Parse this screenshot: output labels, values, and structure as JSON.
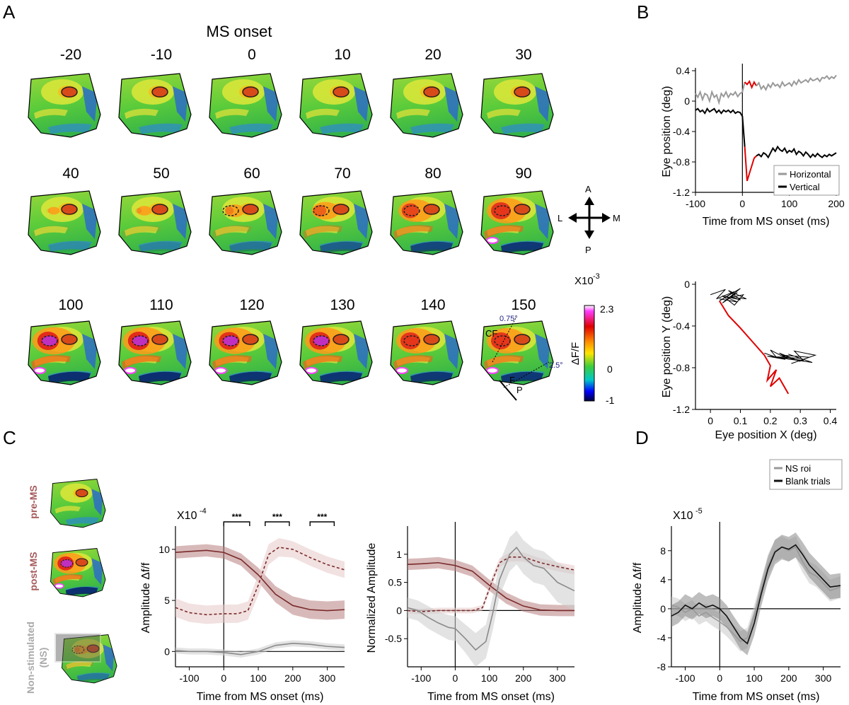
{
  "panelA": {
    "label": "A",
    "title": "MS onset",
    "frame_times": [
      "-20",
      "-10",
      "0",
      "10",
      "20",
      "30",
      "40",
      "50",
      "60",
      "70",
      "80",
      "90",
      "100",
      "110",
      "120",
      "130",
      "140",
      "150"
    ],
    "compass": {
      "a": "A",
      "p": "P",
      "l": "L",
      "m": "M"
    },
    "colorbar": {
      "exponent_prefix": "X10",
      "exponent": "-3",
      "label": "ΔF/F",
      "ticks": [
        "2.3",
        "0",
        "-1"
      ]
    },
    "annotations": {
      "cf": "CF",
      "f": "F",
      "p": "P",
      "deg1": "0.75°",
      "deg2": "2.5°"
    }
  },
  "panelB": {
    "label": "B"
  },
  "panelC": {
    "label": "C",
    "row_labels": [
      "pre-MS",
      "post-MS",
      "Non-stimulated",
      "(NS)"
    ],
    "sig_marks": [
      "***",
      "***",
      "***"
    ]
  },
  "panelD": {
    "label": "D"
  },
  "colors": {
    "pre_ms": "#7a2a2a",
    "post_ms": "#8b3a3a",
    "ns": "#999999",
    "saccade_red": "#e00000",
    "horizontal": "#999999",
    "vertical": "#000000"
  },
  "chart_data": [
    {
      "id": "B_top",
      "type": "line",
      "xlabel": "Time from MS onset (ms)",
      "ylabel": "Eye position (deg)",
      "xlim": [
        -100,
        200
      ],
      "ylim": [
        -1.2,
        0.4
      ],
      "xticks": [
        "-100",
        "0",
        "100",
        "200"
      ],
      "yticks": [
        "0.4",
        "0",
        "-0.4",
        "-0.8",
        "-1.2"
      ],
      "legend": [
        "Horizontal",
        "Vertical"
      ],
      "series": [
        {
          "name": "Horizontal",
          "x": [
            -100,
            -95,
            -90,
            -85,
            -80,
            -75,
            -70,
            -65,
            -60,
            -55,
            -50,
            -45,
            -40,
            -35,
            -30,
            -25,
            -20,
            -15,
            -10,
            -5,
            0,
            5,
            10,
            15,
            20,
            25,
            30,
            35,
            40,
            45,
            50,
            55,
            60,
            65,
            70,
            75,
            80,
            85,
            90,
            95,
            100,
            105,
            110,
            115,
            120,
            125,
            130,
            135,
            140,
            145,
            150,
            155,
            160,
            165,
            170,
            175,
            180,
            185,
            190,
            195,
            200
          ],
          "y": [
            0.1,
            0.05,
            0.12,
            0.02,
            0.1,
            0.08,
            0.0,
            0.12,
            0.05,
            0.08,
            -0.02,
            0.1,
            0.06,
            0.12,
            0.05,
            0.1,
            0.08,
            0.12,
            0.06,
            0.1,
            0.12,
            0.25,
            0.22,
            0.26,
            0.18,
            0.25,
            0.2,
            0.24,
            0.16,
            0.2,
            0.15,
            0.22,
            0.18,
            0.24,
            0.2,
            0.22,
            0.18,
            0.25,
            0.2,
            0.22,
            0.24,
            0.2,
            0.26,
            0.22,
            0.28,
            0.24,
            0.26,
            0.28,
            0.25,
            0.3,
            0.27,
            0.28,
            0.3,
            0.26,
            0.31,
            0.3,
            0.33,
            0.29,
            0.32,
            0.3,
            0.34
          ]
        },
        {
          "name": "Vertical",
          "x": [
            -100,
            -95,
            -90,
            -85,
            -80,
            -75,
            -70,
            -65,
            -60,
            -55,
            -50,
            -45,
            -40,
            -35,
            -30,
            -25,
            -20,
            -15,
            -10,
            -5,
            0,
            5,
            10,
            15,
            20,
            25,
            30,
            35,
            40,
            45,
            50,
            55,
            60,
            65,
            70,
            75,
            80,
            85,
            90,
            95,
            100,
            105,
            110,
            115,
            120,
            125,
            130,
            135,
            140,
            145,
            150,
            155,
            160,
            165,
            170,
            175,
            180,
            185,
            190,
            195,
            200
          ],
          "y": [
            -0.12,
            -0.1,
            -0.14,
            -0.12,
            -0.16,
            -0.1,
            -0.14,
            -0.12,
            -0.1,
            -0.15,
            -0.12,
            -0.16,
            -0.12,
            -0.14,
            -0.12,
            -0.15,
            -0.12,
            -0.16,
            -0.14,
            -0.15,
            -0.2,
            -0.6,
            -1.05,
            -0.95,
            -0.85,
            -0.75,
            -0.72,
            -0.7,
            -0.73,
            -0.68,
            -0.7,
            -0.74,
            -0.68,
            -0.62,
            -0.66,
            -0.6,
            -0.64,
            -0.66,
            -0.62,
            -0.68,
            -0.65,
            -0.67,
            -0.63,
            -0.7,
            -0.66,
            -0.68,
            -0.72,
            -0.67,
            -0.7,
            -0.74,
            -0.7,
            -0.73,
            -0.69,
            -0.72,
            -0.74,
            -0.71,
            -0.73,
            -0.7,
            -0.72,
            -0.7,
            -0.68
          ]
        }
      ]
    },
    {
      "id": "B_bottom",
      "type": "line",
      "xlabel": "Eye position X (deg)",
      "ylabel": "Eye position Y (deg)",
      "xlim": [
        -0.05,
        0.42
      ],
      "ylim": [
        -1.2,
        0
      ],
      "xticks": [
        "0",
        "0.1",
        "0.2",
        "0.3",
        "0.4"
      ],
      "yticks": [
        "0",
        "-0.4",
        "-0.8",
        "-1.2"
      ],
      "series": [
        {
          "name": "pre",
          "x": [
            0.0,
            0.05,
            0.02,
            0.08,
            0.03,
            0.1,
            0.04,
            0.09,
            0.06,
            0.11,
            0.08,
            0.04,
            0.1,
            0.06,
            0.12,
            0.05,
            0.09,
            0.03
          ],
          "y": [
            -0.1,
            -0.05,
            -0.14,
            -0.07,
            -0.16,
            -0.04,
            -0.18,
            -0.08,
            -0.13,
            -0.1,
            -0.2,
            -0.11,
            -0.15,
            -0.06,
            -0.14,
            -0.12,
            -0.17,
            -0.14
          ]
        },
        {
          "name": "saccade",
          "x": [
            0.03,
            0.06,
            0.1,
            0.14,
            0.18,
            0.2,
            0.19,
            0.22,
            0.2,
            0.23,
            0.25,
            0.26
          ],
          "y": [
            -0.16,
            -0.3,
            -0.42,
            -0.55,
            -0.68,
            -0.78,
            -0.92,
            -0.82,
            -0.98,
            -0.9,
            -1.0,
            -1.05
          ]
        },
        {
          "name": "post",
          "x": [
            0.18,
            0.22,
            0.2,
            0.26,
            0.23,
            0.3,
            0.24,
            0.33,
            0.27,
            0.35,
            0.28,
            0.31,
            0.22,
            0.34,
            0.26,
            0.3,
            0.19,
            0.25
          ],
          "y": [
            -0.66,
            -0.7,
            -0.63,
            -0.72,
            -0.66,
            -0.74,
            -0.68,
            -0.7,
            -0.76,
            -0.68,
            -0.64,
            -0.73,
            -0.7,
            -0.75,
            -0.67,
            -0.71,
            -0.69,
            -0.72
          ]
        }
      ]
    },
    {
      "id": "C_left",
      "type": "line",
      "xlabel": "Time from MS onset (ms)",
      "ylabel": "Amplitude Δf/f",
      "exponent_prefix": "X10",
      "exponent": "-4",
      "xlim": [
        -140,
        350
      ],
      "ylim": [
        -1.5,
        12
      ],
      "xticks": [
        "-100",
        "0",
        "100",
        "200",
        "300"
      ],
      "yticks": [
        "0",
        "5",
        "10"
      ],
      "sig_ranges": [
        [
          0,
          75
        ],
        [
          120,
          190
        ],
        [
          250,
          320
        ]
      ],
      "series": [
        {
          "name": "pre-MS",
          "style": "solid",
          "x": [
            -140,
            -100,
            -50,
            0,
            50,
            100,
            150,
            200,
            250,
            300,
            350
          ],
          "y": [
            9.7,
            9.8,
            9.9,
            9.7,
            9.0,
            7.5,
            5.6,
            4.5,
            4.1,
            4.0,
            4.1
          ],
          "band": [
            0.6,
            0.6,
            0.6,
            0.6,
            0.6,
            0.7,
            0.8,
            0.9,
            0.9,
            0.9,
            0.9
          ]
        },
        {
          "name": "post-MS",
          "style": "dashed",
          "x": [
            -140,
            -100,
            -50,
            0,
            40,
            70,
            100,
            130,
            160,
            200,
            250,
            300,
            350
          ],
          "y": [
            4.3,
            3.8,
            3.6,
            3.7,
            3.7,
            4.0,
            6.5,
            9.5,
            10.2,
            10.0,
            9.2,
            8.5,
            8.0
          ],
          "band": [
            0.9,
            0.9,
            0.9,
            0.9,
            0.9,
            0.9,
            1.0,
            1.0,
            0.9,
            0.8,
            0.8,
            0.8,
            0.8
          ]
        },
        {
          "name": "NS",
          "style": "solid",
          "x": [
            -140,
            -100,
            -50,
            0,
            50,
            100,
            150,
            200,
            250,
            300,
            350
          ],
          "y": [
            0.1,
            0.0,
            0.0,
            -0.1,
            -0.3,
            0.0,
            0.6,
            0.8,
            0.7,
            0.5,
            0.4
          ],
          "band": [
            0.3,
            0.3,
            0.3,
            0.3,
            0.3,
            0.3,
            0.3,
            0.3,
            0.3,
            0.3,
            0.3
          ]
        }
      ]
    },
    {
      "id": "C_right",
      "type": "line",
      "xlabel": "Time from MS onset (ms)",
      "ylabel": "Normalized Amplitude",
      "xlim": [
        -140,
        350
      ],
      "ylim": [
        -1.0,
        1.45
      ],
      "xticks": [
        "-100",
        "0",
        "100",
        "200",
        "300"
      ],
      "yticks": [
        "1",
        "0.5",
        "0",
        "-0.5"
      ],
      "series": [
        {
          "name": "pre-MS",
          "style": "solid",
          "x": [
            -140,
            -100,
            -50,
            0,
            50,
            100,
            150,
            200,
            250,
            300,
            350
          ],
          "y": [
            0.82,
            0.83,
            0.85,
            0.8,
            0.7,
            0.45,
            0.22,
            0.08,
            0.01,
            0.0,
            0.0
          ],
          "band": [
            0.1,
            0.1,
            0.1,
            0.1,
            0.1,
            0.1,
            0.1,
            0.1,
            0.1,
            0.1,
            0.1
          ]
        },
        {
          "name": "post-MS",
          "style": "dashed",
          "x": [
            -140,
            -100,
            -50,
            0,
            50,
            80,
            110,
            130,
            160,
            200,
            250,
            300,
            350
          ],
          "y": [
            0.0,
            -0.02,
            0.0,
            0.0,
            0.0,
            0.05,
            0.55,
            0.85,
            0.95,
            0.95,
            0.85,
            0.78,
            0.72
          ],
          "band": [
            0.05,
            0.05,
            0.05,
            0.05,
            0.05,
            0.05,
            0.08,
            0.08,
            0.08,
            0.08,
            0.08,
            0.08,
            0.08
          ]
        },
        {
          "name": "NS",
          "style": "solid",
          "x": [
            -140,
            -110,
            -80,
            -50,
            -20,
            0,
            30,
            60,
            90,
            110,
            130,
            160,
            180,
            200,
            230,
            260,
            300,
            350
          ],
          "y": [
            0.05,
            0.0,
            -0.12,
            -0.22,
            -0.3,
            -0.32,
            -0.5,
            -0.7,
            -0.55,
            -0.05,
            0.55,
            1.0,
            1.12,
            0.95,
            0.8,
            0.75,
            0.5,
            0.35
          ],
          "band": [
            0.18,
            0.18,
            0.2,
            0.2,
            0.22,
            0.22,
            0.25,
            0.3,
            0.3,
            0.3,
            0.3,
            0.3,
            0.3,
            0.3,
            0.3,
            0.3,
            0.35,
            0.35
          ]
        }
      ]
    },
    {
      "id": "D",
      "type": "line",
      "xlabel": "Time from MS onset (ms)",
      "ylabel": "Amplitude Δf/f",
      "exponent_prefix": "X10",
      "exponent": "-5",
      "xlim": [
        -140,
        350
      ],
      "ylim": [
        -8,
        11
      ],
      "xticks": [
        "-100",
        "0",
        "100",
        "200",
        "300"
      ],
      "yticks": [
        "8",
        "4",
        "0",
        "-4",
        "-8"
      ],
      "legend": [
        "NS roi",
        "Blank trials"
      ],
      "series": [
        {
          "name": "NS roi",
          "x": [
            -140,
            -120,
            -100,
            -80,
            -60,
            -40,
            -20,
            0,
            20,
            40,
            60,
            80,
            100,
            120,
            140,
            160,
            180,
            200,
            220,
            240,
            260,
            280,
            300,
            320,
            350
          ],
          "y": [
            0.5,
            0.2,
            -0.5,
            0.0,
            -1.0,
            -0.5,
            -1.2,
            -1.8,
            -2.5,
            -3.5,
            -4.5,
            -4.0,
            -1.0,
            2.5,
            6.0,
            8.0,
            8.5,
            8.0,
            8.5,
            6.5,
            5.0,
            4.5,
            3.5,
            2.5,
            3.0
          ],
          "band": [
            1.2,
            1.2,
            1.2,
            1.2,
            1.2,
            1.2,
            1.2,
            1.2,
            1.3,
            1.3,
            1.4,
            1.4,
            1.5,
            1.5,
            1.5,
            1.5,
            1.5,
            1.5,
            1.5,
            1.5,
            1.5,
            1.5,
            1.5,
            1.5,
            1.5
          ]
        },
        {
          "name": "Blank trials",
          "x": [
            -140,
            -120,
            -100,
            -80,
            -60,
            -40,
            -20,
            0,
            20,
            40,
            60,
            80,
            100,
            120,
            140,
            160,
            180,
            200,
            220,
            240,
            260,
            280,
            300,
            320,
            350
          ],
          "y": [
            -1.0,
            -0.5,
            0.5,
            0.0,
            0.8,
            0.2,
            0.5,
            0.0,
            -1.0,
            -2.5,
            -4.0,
            -4.8,
            -2.0,
            2.0,
            5.5,
            7.8,
            8.5,
            8.2,
            8.8,
            7.5,
            6.0,
            5.0,
            4.0,
            3.0,
            3.2
          ],
          "band": [
            1.5,
            1.5,
            1.5,
            1.5,
            1.5,
            1.5,
            1.5,
            1.5,
            1.5,
            1.5,
            1.6,
            1.6,
            1.7,
            1.7,
            1.7,
            1.7,
            1.7,
            1.7,
            1.7,
            1.7,
            1.7,
            1.7,
            1.7,
            1.7,
            1.7
          ]
        }
      ]
    }
  ]
}
